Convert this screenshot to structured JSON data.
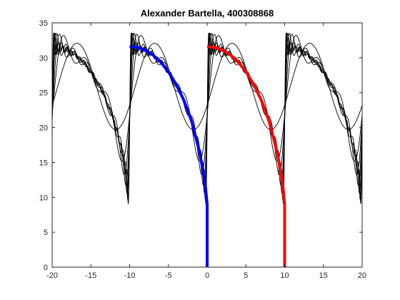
{
  "chart_data": {
    "type": "line",
    "title": "Alexander Bartella, 400308868",
    "xlabel": "",
    "ylabel": "",
    "xlim": [
      -20,
      20
    ],
    "ylim": [
      0,
      35
    ],
    "xticks": [
      -20,
      -15,
      -10,
      -5,
      0,
      5,
      10,
      15,
      20
    ],
    "yticks": [
      0,
      5,
      10,
      15,
      20,
      25,
      30,
      35
    ],
    "grid": false,
    "legend": "none",
    "period": 10,
    "box": true,
    "series": [
      {
        "color": "#000000",
        "style": "thin",
        "description_values": "family of periodic Fourier partial-sum approximations (period 10) with Gibbs ringing near the jumps at x = -20, -10, 0, 10"
      },
      {
        "color": "#0000ff",
        "style": "thick",
        "x": [
          -10,
          -9,
          -8,
          -7,
          -6,
          -5,
          -4,
          -3,
          -2,
          -1,
          -0.5,
          -0.2,
          0,
          0.001
        ],
        "y": [
          31.6,
          31.5,
          31.1,
          30.4,
          29.4,
          28.0,
          26.2,
          23.9,
          20.9,
          16.6,
          13.7,
          11.3,
          9.0,
          0
        ]
      },
      {
        "color": "#ff0000",
        "style": "thick",
        "x": [
          0,
          1,
          2,
          3,
          4,
          5,
          6,
          7,
          8,
          9,
          9.5,
          9.8,
          10,
          10.001
        ],
        "y": [
          31.6,
          31.5,
          31.1,
          30.4,
          29.4,
          28.0,
          26.2,
          23.9,
          20.9,
          16.6,
          13.7,
          11.3,
          9.0,
          0
        ]
      }
    ]
  }
}
